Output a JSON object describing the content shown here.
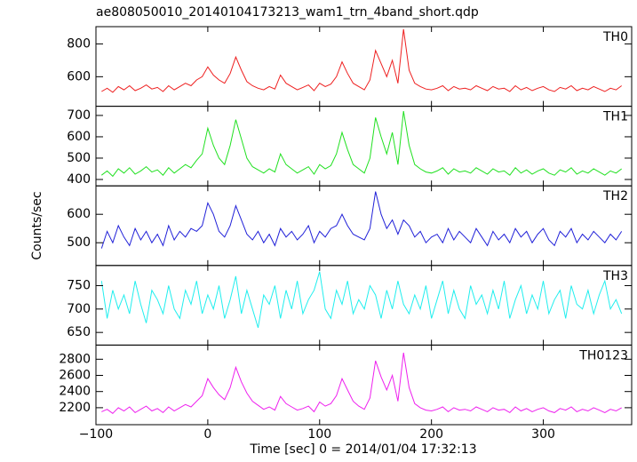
{
  "chart_data": {
    "type": "line",
    "title": "ae808050010_20140104173213_wam1_trn_4band_short.qdp",
    "xlabel": "Time [sec] 0 = 2014/01/04 17:32:13",
    "ylabel": "Counts/sec",
    "xlim": [
      -100,
      379
    ],
    "xticks": [
      {
        "value": -100,
        "label": "−100"
      },
      0,
      100,
      200,
      300
    ],
    "x": [
      -95,
      -90,
      -85,
      -80,
      -75,
      -70,
      -65,
      -60,
      -55,
      -50,
      -45,
      -40,
      -35,
      -30,
      -25,
      -20,
      -15,
      -10,
      -5,
      0,
      5,
      10,
      15,
      20,
      25,
      30,
      35,
      40,
      45,
      50,
      55,
      60,
      65,
      70,
      75,
      80,
      85,
      90,
      95,
      100,
      105,
      110,
      115,
      120,
      125,
      130,
      135,
      140,
      145,
      150,
      155,
      160,
      165,
      170,
      175,
      180,
      185,
      190,
      195,
      200,
      205,
      210,
      215,
      220,
      225,
      230,
      235,
      240,
      245,
      250,
      255,
      260,
      265,
      270,
      275,
      280,
      285,
      290,
      295,
      300,
      305,
      310,
      315,
      320,
      325,
      330,
      335,
      340,
      345,
      350,
      355,
      360,
      365,
      370
    ],
    "series": [
      {
        "name": "TH0",
        "color": "#ee2020",
        "ylim": [
          420,
          905
        ],
        "yticks": [
          600,
          800
        ],
        "values": [
          510,
          530,
          505,
          540,
          520,
          545,
          515,
          530,
          550,
          525,
          535,
          510,
          545,
          520,
          540,
          560,
          545,
          580,
          600,
          660,
          610,
          580,
          560,
          620,
          720,
          640,
          570,
          545,
          530,
          520,
          540,
          525,
          610,
          560,
          540,
          520,
          535,
          550,
          515,
          560,
          540,
          555,
          600,
          690,
          620,
          560,
          540,
          520,
          580,
          760,
          680,
          600,
          700,
          560,
          890,
          640,
          560,
          540,
          525,
          520,
          530,
          545,
          515,
          540,
          525,
          530,
          520,
          545,
          530,
          515,
          540,
          525,
          530,
          510,
          545,
          520,
          535,
          515,
          530,
          540,
          520,
          510,
          535,
          525,
          545,
          515,
          530,
          520,
          540,
          525,
          510,
          530,
          520,
          545
        ]
      },
      {
        "name": "TH1",
        "color": "#20e020",
        "ylim": [
          370,
          743
        ],
        "yticks": [
          400,
          500,
          600,
          700
        ],
        "values": [
          420,
          440,
          415,
          450,
          430,
          455,
          425,
          440,
          460,
          435,
          445,
          420,
          455,
          430,
          450,
          470,
          455,
          490,
          520,
          640,
          560,
          500,
          470,
          560,
          680,
          590,
          500,
          460,
          445,
          430,
          450,
          435,
          520,
          470,
          450,
          430,
          445,
          460,
          425,
          470,
          450,
          465,
          520,
          620,
          540,
          470,
          450,
          430,
          500,
          690,
          600,
          520,
          620,
          470,
          720,
          560,
          470,
          450,
          435,
          430,
          440,
          455,
          425,
          450,
          435,
          440,
          430,
          455,
          440,
          425,
          450,
          435,
          440,
          420,
          455,
          430,
          445,
          425,
          440,
          450,
          430,
          420,
          445,
          435,
          455,
          425,
          440,
          430,
          450,
          435,
          420,
          440,
          430,
          450
        ]
      },
      {
        "name": "TH2",
        "color": "#2020d8",
        "ylim": [
          420,
          700
        ],
        "yticks": [
          500,
          600
        ],
        "values": [
          480,
          540,
          500,
          560,
          520,
          490,
          550,
          510,
          540,
          500,
          530,
          490,
          560,
          510,
          540,
          520,
          550,
          540,
          560,
          640,
          600,
          540,
          520,
          560,
          630,
          580,
          530,
          510,
          540,
          500,
          530,
          490,
          550,
          520,
          540,
          510,
          530,
          560,
          500,
          540,
          520,
          550,
          560,
          600,
          560,
          530,
          520,
          510,
          550,
          680,
          600,
          550,
          580,
          530,
          580,
          560,
          520,
          540,
          500,
          520,
          530,
          500,
          550,
          510,
          540,
          520,
          500,
          550,
          520,
          490,
          540,
          510,
          530,
          500,
          550,
          520,
          540,
          500,
          530,
          550,
          510,
          490,
          540,
          520,
          550,
          500,
          530,
          510,
          540,
          520,
          500,
          530,
          510,
          540
        ]
      },
      {
        "name": "TH3",
        "color": "#20eeee",
        "ylim": [
          623,
          793
        ],
        "yticks": [
          650,
          700,
          750
        ],
        "values": [
          760,
          680,
          740,
          700,
          730,
          690,
          760,
          710,
          670,
          740,
          720,
          690,
          750,
          700,
          680,
          740,
          710,
          760,
          690,
          730,
          700,
          750,
          680,
          720,
          770,
          690,
          740,
          700,
          660,
          730,
          710,
          750,
          680,
          740,
          700,
          760,
          690,
          720,
          740,
          780,
          700,
          680,
          740,
          710,
          760,
          690,
          720,
          700,
          750,
          730,
          680,
          740,
          700,
          760,
          710,
          690,
          730,
          700,
          750,
          680,
          720,
          760,
          690,
          740,
          700,
          680,
          750,
          710,
          730,
          690,
          740,
          700,
          760,
          680,
          720,
          750,
          690,
          730,
          700,
          760,
          690,
          720,
          740,
          680,
          750,
          710,
          700,
          740,
          690,
          730,
          760,
          700,
          720,
          690
        ]
      },
      {
        "name": "TH0123",
        "color": "#ee20ee",
        "ylim": [
          1990,
          2975
        ],
        "yticks": [
          2200,
          2400,
          2600,
          2800
        ],
        "values": [
          2150,
          2180,
          2130,
          2200,
          2160,
          2210,
          2140,
          2180,
          2220,
          2160,
          2190,
          2140,
          2210,
          2160,
          2200,
          2240,
          2210,
          2280,
          2350,
          2560,
          2450,
          2360,
          2300,
          2450,
          2700,
          2520,
          2380,
          2280,
          2230,
          2180,
          2210,
          2170,
          2340,
          2250,
          2210,
          2170,
          2190,
          2220,
          2150,
          2270,
          2220,
          2250,
          2350,
          2560,
          2420,
          2280,
          2220,
          2180,
          2320,
          2780,
          2580,
          2420,
          2600,
          2280,
          2880,
          2450,
          2250,
          2200,
          2170,
          2160,
          2180,
          2210,
          2150,
          2200,
          2170,
          2180,
          2160,
          2210,
          2180,
          2150,
          2200,
          2170,
          2180,
          2140,
          2210,
          2160,
          2190,
          2150,
          2180,
          2200,
          2160,
          2140,
          2190,
          2170,
          2210,
          2150,
          2180,
          2160,
          2200,
          2170,
          2140,
          2180,
          2160,
          2200
        ]
      }
    ]
  }
}
